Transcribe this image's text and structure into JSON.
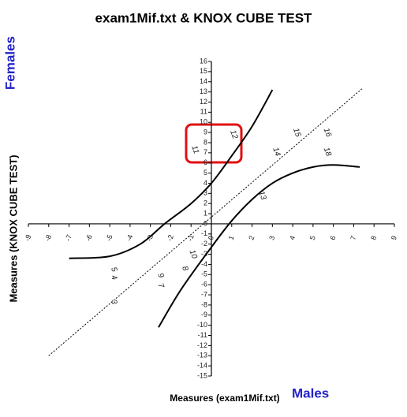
{
  "chart_data": {
    "type": "scatter",
    "title": "exam1Mif.txt & KNOX CUBE TEST",
    "x_label": "Measures (exam1Mif.txt)",
    "x_group": "Males",
    "y_label": "Measures (KNOX CUBE TEST)",
    "y_group": "Females",
    "xlim": [
      -9,
      9
    ],
    "ylim": [
      -15,
      16
    ],
    "xticks": [
      -9,
      -8,
      -7,
      -6,
      -5,
      -4,
      -3,
      -2,
      -1,
      0,
      1,
      2,
      3,
      4,
      5,
      6,
      7,
      8,
      9
    ],
    "yticks": [
      -15,
      -14,
      -13,
      -12,
      -11,
      -10,
      -9,
      -8,
      -7,
      -6,
      -5,
      -4,
      -3,
      -2,
      -1,
      0,
      1,
      2,
      3,
      4,
      5,
      6,
      7,
      8,
      9,
      10,
      11,
      12,
      13,
      14,
      15,
      16
    ],
    "labels": [
      "12",
      "11",
      "15",
      "16",
      "14",
      "18",
      "13",
      "10",
      "8",
      "9",
      "7",
      "5",
      "4",
      "3"
    ],
    "x": [
      1.1,
      -0.8,
      4.2,
      5.7,
      3.2,
      5.7,
      2.5,
      -0.9,
      -1.3,
      -2.5,
      -2.5,
      -4.8,
      -4.8,
      -4.8
    ],
    "y": [
      8.8,
      7.3,
      9.0,
      9.0,
      7.1,
      7.1,
      2.8,
      -3.0,
      -4.4,
      -5.1,
      -6.1,
      -4.5,
      -5.3,
      -7.7
    ],
    "reference_line": {
      "x": [
        -8,
        7.4
      ],
      "y": [
        -13,
        13.3
      ]
    },
    "curves": [
      {
        "x": [
          -7,
          -5,
          -3.5,
          -2.3,
          -1,
          0,
          1,
          2,
          3
        ],
        "y": [
          -3.4,
          -3.2,
          -2,
          0,
          2,
          4,
          6.7,
          9.6,
          13.2
        ]
      },
      {
        "x": [
          -2.6,
          -1.5,
          0,
          1,
          2,
          3,
          4,
          5,
          6,
          7.3
        ],
        "y": [
          -10.2,
          -6.5,
          -2.3,
          0.3,
          2.4,
          4,
          5,
          5.6,
          5.8,
          5.6
        ]
      }
    ]
  }
}
